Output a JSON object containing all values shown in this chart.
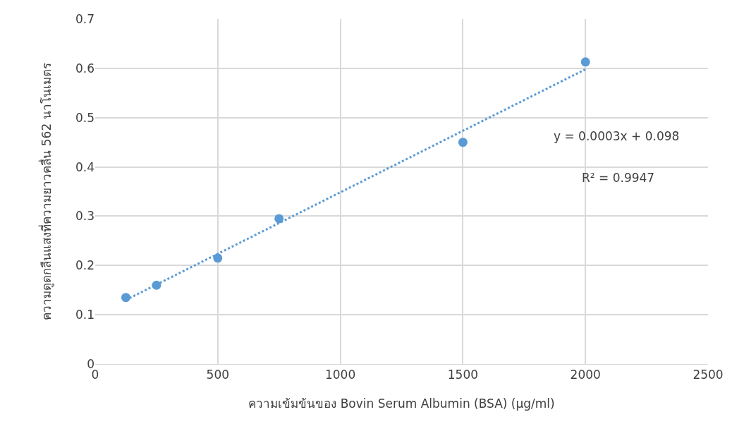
{
  "chart_data": {
    "type": "scatter",
    "xlabel": "ความเข้มข้นของ Bovin Serum Albumin (BSA) (µg/ml)",
    "ylabel": "ความดูดกลืนแสงที่ความยาวคลื่น 562 นาโนเมตร",
    "x": [
      125,
      250,
      500,
      750,
      1500,
      2000
    ],
    "series": [
      {
        "color": "#5b9bd5",
        "marker": "circle",
        "values": [
          0.135,
          0.16,
          0.215,
          0.295,
          0.45,
          0.613
        ]
      },
      {
        "type": "line",
        "color": "#5b9bd5",
        "line_style": "dotted",
        "marker": "none",
        "x": [
          125,
          2000
        ],
        "values": [
          0.13,
          0.598
        ]
      }
    ],
    "xlim": [
      0,
      2500
    ],
    "xticks": [
      0,
      500,
      1000,
      1500,
      2000,
      2500
    ],
    "ylim": [
      0,
      0.7
    ],
    "yticks": [
      0,
      0.1,
      0.2,
      0.3,
      0.4,
      0.5,
      0.6,
      0.7
    ],
    "grid": true,
    "annotations": [
      "y = 0.0003x + 0.098",
      "R² = 0.9947"
    ]
  }
}
